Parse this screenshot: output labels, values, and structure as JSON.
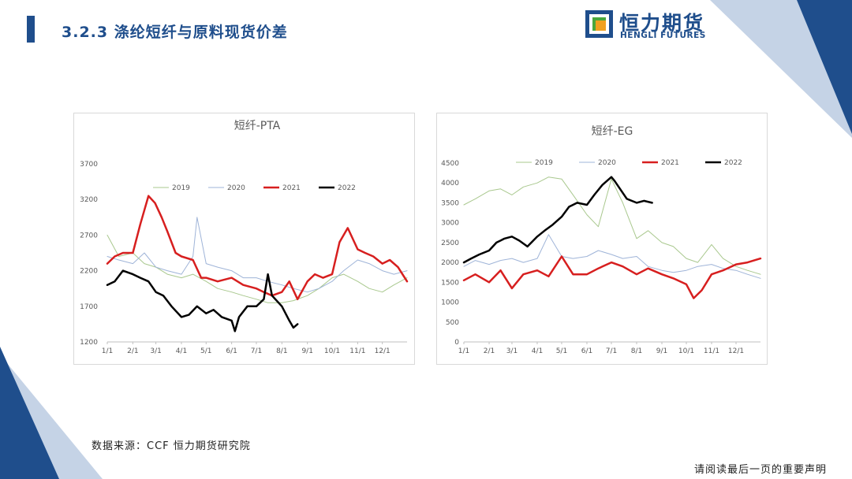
{
  "page": {
    "title": "3.2.3 涤纶短纤与原料现货价差",
    "source": "数据来源：CCF 恒力期货研究院",
    "disclaimer": "请阅读最后一页的重要声明"
  },
  "logo": {
    "cn": "恒力期货",
    "en": "HENGLI FUTURES"
  },
  "colors": {
    "brand": "#1f4e8c",
    "accent_light": "#c5d3e6"
  },
  "chart_data": [
    {
      "type": "line",
      "title": "短纤-PTA",
      "x_tick_labels": [
        "1/1",
        "2/1",
        "3/1",
        "4/1",
        "5/1",
        "6/1",
        "7/1",
        "8/1",
        "9/1",
        "10/1",
        "11/1",
        "12/1"
      ],
      "ylim": [
        1200,
        3700
      ],
      "y_ticks": [
        1200,
        1700,
        2200,
        2700,
        3200,
        3700
      ],
      "legend": "top",
      "series": [
        {
          "name": "2019",
          "color": "#a9c88e",
          "width": 1,
          "x": [
            "01-01",
            "01-15",
            "02-01",
            "02-15",
            "03-01",
            "03-15",
            "04-01",
            "04-15",
            "05-01",
            "05-15",
            "06-01",
            "06-15",
            "07-01",
            "07-15",
            "08-01",
            "08-15",
            "09-01",
            "09-15",
            "10-01",
            "10-15",
            "11-01",
            "11-15",
            "12-01",
            "12-15",
            "12-31"
          ],
          "values": [
            2700,
            2400,
            2450,
            2300,
            2250,
            2150,
            2100,
            2150,
            2050,
            1950,
            1900,
            1850,
            1800,
            1750,
            1750,
            1780,
            1850,
            1950,
            2100,
            2150,
            2050,
            1950,
            1900,
            2000,
            2100
          ]
        },
        {
          "name": "2020",
          "color": "#9fb4d8",
          "width": 1,
          "x": [
            "01-01",
            "01-15",
            "02-01",
            "02-15",
            "03-01",
            "03-15",
            "04-01",
            "04-15",
            "04-20",
            "05-01",
            "05-15",
            "06-01",
            "06-15",
            "07-01",
            "07-15",
            "08-01",
            "08-15",
            "09-01",
            "09-15",
            "10-01",
            "10-15",
            "11-01",
            "11-15",
            "12-01",
            "12-15",
            "12-31"
          ],
          "values": [
            2400,
            2350,
            2300,
            2450,
            2250,
            2200,
            2150,
            2400,
            2950,
            2300,
            2250,
            2200,
            2100,
            2100,
            2050,
            2000,
            1950,
            1900,
            1950,
            2050,
            2200,
            2350,
            2300,
            2200,
            2150,
            2200
          ]
        },
        {
          "name": "2021",
          "color": "#d71f1f",
          "width": 2.5,
          "x": [
            "01-01",
            "01-10",
            "01-20",
            "02-01",
            "02-10",
            "02-20",
            "02-28",
            "03-08",
            "03-15",
            "03-25",
            "04-01",
            "04-15",
            "04-25",
            "05-01",
            "05-15",
            "06-01",
            "06-15",
            "07-01",
            "07-10",
            "07-20",
            "08-01",
            "08-10",
            "08-20",
            "09-01",
            "09-10",
            "09-20",
            "10-01",
            "10-10",
            "10-20",
            "11-01",
            "11-10",
            "11-20",
            "12-01",
            "12-10",
            "12-20",
            "12-31"
          ],
          "values": [
            2300,
            2400,
            2450,
            2450,
            2850,
            3250,
            3150,
            2950,
            2750,
            2450,
            2400,
            2350,
            2100,
            2100,
            2050,
            2100,
            2000,
            1950,
            1900,
            1850,
            1900,
            2050,
            1800,
            2050,
            2150,
            2100,
            2150,
            2600,
            2800,
            2500,
            2450,
            2400,
            2300,
            2350,
            2250,
            2050
          ]
        },
        {
          "name": "2022",
          "color": "#000000",
          "width": 2.5,
          "x": [
            "01-01",
            "01-10",
            "01-20",
            "02-01",
            "02-10",
            "02-20",
            "03-01",
            "03-10",
            "03-20",
            "04-01",
            "04-10",
            "04-20",
            "05-01",
            "05-10",
            "05-20",
            "06-01",
            "06-05",
            "06-10",
            "06-20",
            "07-01",
            "07-10",
            "07-15",
            "07-20",
            "08-01",
            "08-10",
            "08-15",
            "08-20"
          ],
          "values": [
            2000,
            2050,
            2200,
            2150,
            2100,
            2050,
            1900,
            1850,
            1700,
            1550,
            1580,
            1700,
            1600,
            1650,
            1550,
            1500,
            1350,
            1550,
            1700,
            1700,
            1800,
            2150,
            1850,
            1700,
            1500,
            1400,
            1450
          ]
        }
      ]
    },
    {
      "type": "line",
      "title": "短纤-EG",
      "x_tick_labels": [
        "1/1",
        "2/1",
        "3/1",
        "4/1",
        "5/1",
        "6/1",
        "7/1",
        "8/1",
        "9/1",
        "10/1",
        "11/1",
        "12/1"
      ],
      "ylim": [
        0,
        4500
      ],
      "y_ticks": [
        0,
        500,
        1000,
        1500,
        2000,
        2500,
        3000,
        3500,
        4000,
        4500
      ],
      "legend": "top",
      "series": [
        {
          "name": "2019",
          "color": "#a9c88e",
          "width": 1,
          "x": [
            "01-01",
            "01-15",
            "02-01",
            "02-15",
            "03-01",
            "03-15",
            "04-01",
            "04-15",
            "05-01",
            "05-15",
            "06-01",
            "06-15",
            "07-01",
            "07-15",
            "08-01",
            "08-15",
            "09-01",
            "09-15",
            "10-01",
            "10-15",
            "11-01",
            "11-15",
            "12-01",
            "12-15",
            "12-31"
          ],
          "values": [
            3450,
            3600,
            3800,
            3850,
            3700,
            3900,
            4000,
            4150,
            4100,
            3700,
            3200,
            2900,
            4100,
            3500,
            2600,
            2800,
            2500,
            2400,
            2100,
            2000,
            2450,
            2100,
            1900,
            1800,
            1700
          ]
        },
        {
          "name": "2020",
          "color": "#9fb4d8",
          "width": 1,
          "x": [
            "01-01",
            "01-15",
            "02-01",
            "02-15",
            "03-01",
            "03-15",
            "04-01",
            "04-15",
            "05-01",
            "05-15",
            "06-01",
            "06-15",
            "07-01",
            "07-15",
            "08-01",
            "08-15",
            "09-01",
            "09-15",
            "10-01",
            "10-15",
            "11-01",
            "11-15",
            "12-01",
            "12-15",
            "12-31"
          ],
          "values": [
            1900,
            2050,
            1950,
            2050,
            2100,
            2000,
            2100,
            2700,
            2150,
            2100,
            2150,
            2300,
            2200,
            2100,
            2150,
            1900,
            1800,
            1750,
            1800,
            1900,
            1950,
            1850,
            1800,
            1700,
            1600
          ]
        },
        {
          "name": "2021",
          "color": "#d71f1f",
          "width": 2.5,
          "x": [
            "01-01",
            "01-15",
            "02-01",
            "02-15",
            "03-01",
            "03-15",
            "04-01",
            "04-15",
            "05-01",
            "05-15",
            "06-01",
            "06-15",
            "07-01",
            "07-15",
            "08-01",
            "08-15",
            "09-01",
            "09-15",
            "10-01",
            "10-10",
            "10-20",
            "11-01",
            "11-15",
            "12-01",
            "12-15",
            "12-31"
          ],
          "values": [
            1550,
            1700,
            1500,
            1800,
            1350,
            1700,
            1800,
            1650,
            2150,
            1700,
            1700,
            1850,
            2000,
            1900,
            1700,
            1850,
            1700,
            1600,
            1450,
            1100,
            1300,
            1700,
            1800,
            1950,
            2000,
            2100
          ]
        },
        {
          "name": "2022",
          "color": "#000000",
          "width": 2.5,
          "x": [
            "01-01",
            "01-10",
            "01-20",
            "02-01",
            "02-10",
            "02-20",
            "03-01",
            "03-10",
            "03-20",
            "04-01",
            "04-10",
            "04-20",
            "05-01",
            "05-10",
            "05-20",
            "06-01",
            "06-10",
            "06-20",
            "07-01",
            "07-05",
            "07-10",
            "07-20",
            "08-01",
            "08-10",
            "08-20"
          ],
          "values": [
            2000,
            2100,
            2200,
            2300,
            2500,
            2600,
            2650,
            2550,
            2400,
            2650,
            2800,
            2950,
            3150,
            3400,
            3500,
            3450,
            3700,
            3950,
            4150,
            4050,
            3900,
            3600,
            3500,
            3550,
            3500
          ]
        }
      ]
    }
  ]
}
